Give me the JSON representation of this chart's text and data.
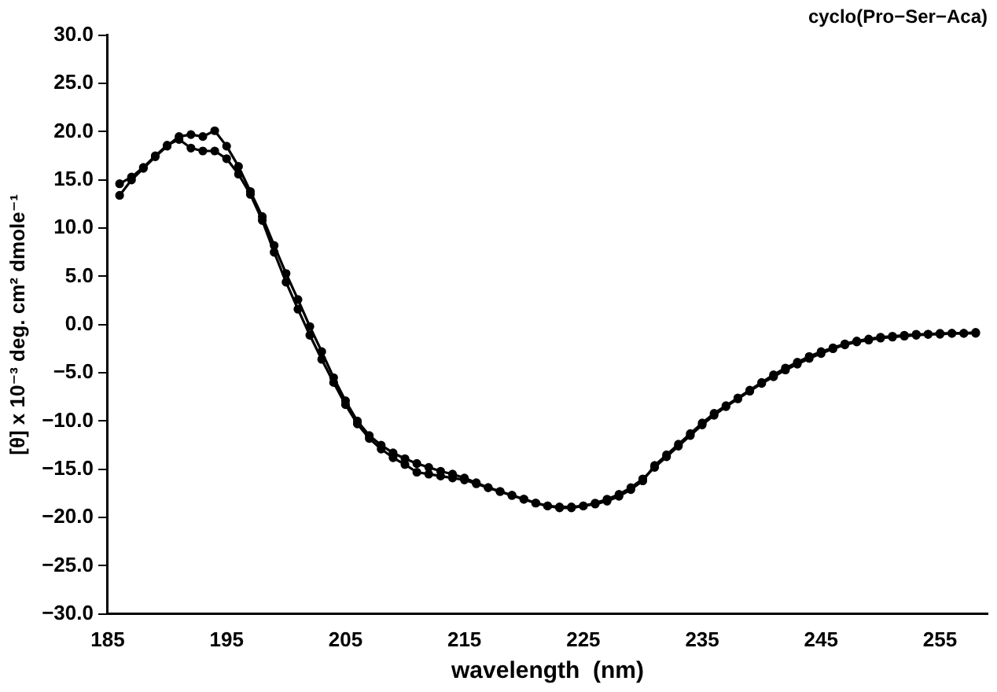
{
  "chart_data": {
    "type": "line",
    "title": "cyclo(Pro−Ser−Aca)",
    "xlabel": "wavelength  (nm)",
    "ylabel": "[θ] x 10⁻³ deg. cm² dmole⁻¹",
    "x": [
      186,
      187,
      188,
      189,
      190,
      191,
      192,
      193,
      194,
      195,
      196,
      197,
      198,
      199,
      200,
      201,
      202,
      203,
      204,
      205,
      206,
      207,
      208,
      209,
      210,
      211,
      212,
      213,
      214,
      215,
      216,
      217,
      218,
      219,
      220,
      221,
      222,
      223,
      224,
      225,
      226,
      227,
      228,
      229,
      230,
      231,
      232,
      233,
      234,
      235,
      236,
      237,
      238,
      239,
      240,
      241,
      242,
      243,
      244,
      245,
      246,
      247,
      248,
      249,
      250,
      251,
      252,
      253,
      254,
      255,
      256,
      257,
      258
    ],
    "series": [
      {
        "color": "#000000",
        "values": [
          13.4,
          15.0,
          16.2,
          17.4,
          18.5,
          19.5,
          19.7,
          19.5,
          20.1,
          18.5,
          16.4,
          13.8,
          11.2,
          8.2,
          5.3,
          2.6,
          -0.2,
          -2.8,
          -5.5,
          -7.9,
          -10.0,
          -11.5,
          -12.5,
          -13.3,
          -13.9,
          -14.4,
          -14.8,
          -15.2,
          -15.5,
          -15.9,
          -16.4,
          -16.9,
          -17.3,
          -17.7,
          -18.1,
          -18.5,
          -18.8,
          -18.9,
          -18.9,
          -18.8,
          -18.6,
          -18.3,
          -17.8,
          -17.1,
          -16.2,
          -14.6,
          -13.5,
          -12.4,
          -11.3,
          -10.2,
          -9.2,
          -8.4,
          -7.6,
          -6.8,
          -6.0,
          -5.2,
          -4.5,
          -3.9,
          -3.3,
          -2.8,
          -2.4,
          -2.0,
          -1.7,
          -1.5,
          -1.3,
          -1.2,
          -1.1,
          -1.0,
          -1.0,
          -0.9,
          -0.9,
          -0.9,
          -0.9
        ]
      },
      {
        "color": "#000000",
        "values": [
          14.6,
          15.3,
          16.3,
          17.5,
          18.6,
          19.2,
          18.3,
          18.0,
          18.0,
          17.2,
          15.6,
          13.5,
          10.8,
          7.5,
          4.4,
          1.6,
          -1.1,
          -3.6,
          -6.0,
          -8.3,
          -10.3,
          -11.8,
          -12.9,
          -13.8,
          -14.5,
          -15.3,
          -15.5,
          -15.7,
          -15.9,
          -16.1,
          -16.5,
          -16.9,
          -17.3,
          -17.7,
          -18.1,
          -18.5,
          -18.8,
          -19.0,
          -19.0,
          -18.8,
          -18.5,
          -18.1,
          -17.6,
          -16.9,
          -16.0,
          -14.8,
          -13.7,
          -12.6,
          -11.5,
          -10.4,
          -9.4,
          -8.5,
          -7.7,
          -6.9,
          -6.1,
          -5.4,
          -4.7,
          -4.1,
          -3.5,
          -3.0,
          -2.5,
          -2.1,
          -1.8,
          -1.6,
          -1.4,
          -1.3,
          -1.2,
          -1.1,
          -1.0,
          -1.0,
          -0.9,
          -0.9,
          -0.8
        ]
      }
    ],
    "xlim": [
      185,
      259
    ],
    "xticks": [
      185,
      195,
      205,
      215,
      225,
      235,
      245,
      255
    ],
    "ylim": [
      -30,
      30
    ],
    "yticks": [
      {
        "value": -30,
        "label": "−30.0"
      },
      {
        "value": -25,
        "label": "−25.0"
      },
      {
        "value": -20,
        "label": "−20.0"
      },
      {
        "value": -15,
        "label": "−15.0"
      },
      {
        "value": -10,
        "label": "−10.0"
      },
      {
        "value": -5,
        "label": "−5.0"
      },
      {
        "value": 0,
        "label": "0.0"
      },
      {
        "value": 5,
        "label": "5.0"
      },
      {
        "value": 10,
        "label": "10.0"
      },
      {
        "value": 15,
        "label": "15.0"
      },
      {
        "value": 20,
        "label": "20.0"
      },
      {
        "value": 25,
        "label": "25.0"
      },
      {
        "value": 30,
        "label": "30.0"
      }
    ],
    "grid": false,
    "legend": false,
    "marker": "circle",
    "line_style": "solid"
  }
}
